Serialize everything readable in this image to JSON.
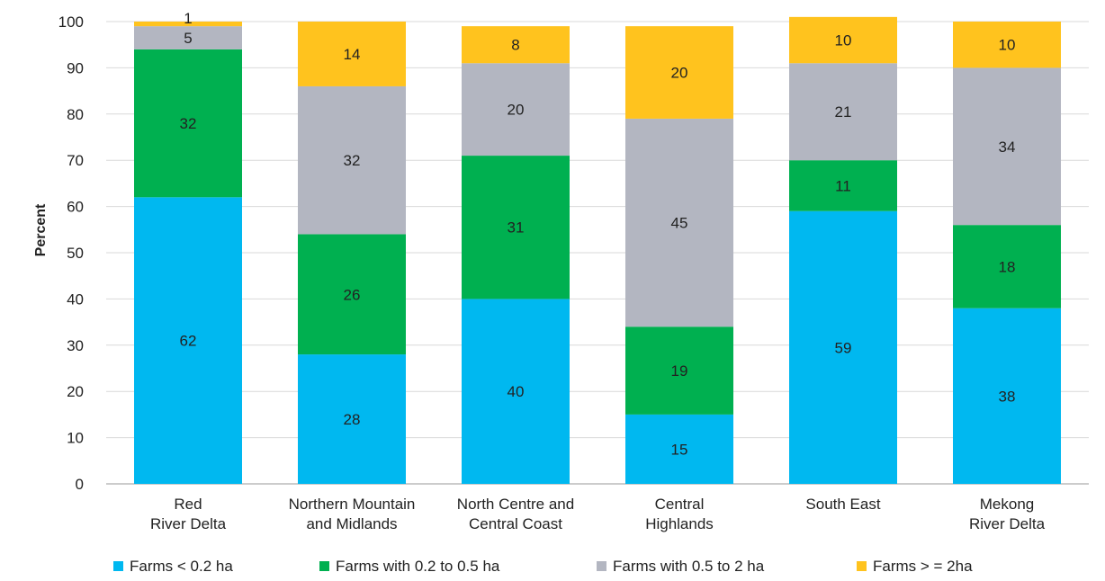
{
  "chart_data": {
    "type": "bar",
    "stacked": true,
    "title": "",
    "xlabel": "",
    "ylabel": "Percent",
    "ylim": [
      0,
      100
    ],
    "yticks": [
      0,
      10,
      20,
      30,
      40,
      50,
      60,
      70,
      80,
      90,
      100
    ],
    "grid": true,
    "legend_position": "bottom",
    "categories": [
      [
        "Red",
        "River Delta"
      ],
      [
        "Northern Mountain",
        "and Midlands"
      ],
      [
        "North Centre and",
        "Central Coast"
      ],
      [
        "Central",
        "Highlands"
      ],
      [
        "South East"
      ],
      [
        "Mekong",
        "River Delta"
      ]
    ],
    "series": [
      {
        "name": "Farms < 0.2 ha",
        "color": "#00B8F0",
        "values": [
          62,
          28,
          40,
          15,
          59,
          38
        ]
      },
      {
        "name": "Farms with 0.2 to 0.5 ha",
        "color": "#00B050",
        "values": [
          32,
          26,
          31,
          19,
          11,
          18
        ]
      },
      {
        "name": "Farms with 0.5 to 2 ha",
        "color": "#B3B6C1",
        "values": [
          5,
          32,
          20,
          45,
          21,
          34
        ]
      },
      {
        "name": "Farms > = 2ha",
        "color": "#FFC31E",
        "values": [
          1,
          14,
          8,
          20,
          10,
          10
        ]
      }
    ]
  }
}
